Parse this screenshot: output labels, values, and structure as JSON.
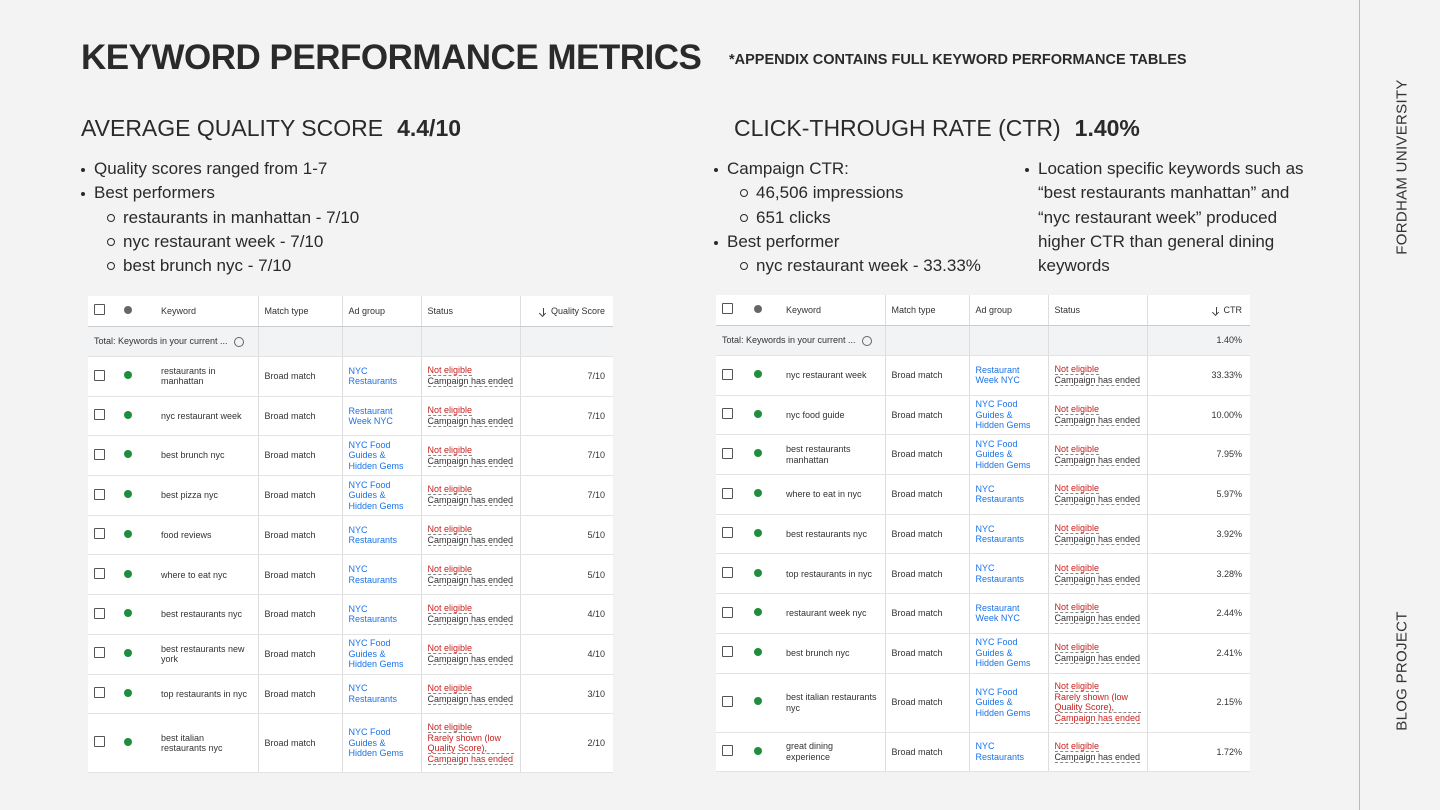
{
  "header": {
    "title": "KEYWORD PERFORMANCE METRICS",
    "note": "*APPENDIX CONTAINS FULL KEYWORD PERFORMANCE TABLES"
  },
  "sidebar": {
    "top": "FORDHAM UNIVERSITY",
    "bottom": "BLOG PROJECT"
  },
  "left": {
    "heading": "AVERAGE QUALITY SCORE",
    "value": "4.4/10",
    "bullets": [
      {
        "text": "Quality scores ranged from 1-7"
      },
      {
        "text": "Best performers",
        "sub": [
          "restaurants in manhattan - 7/10",
          "nyc restaurant week - 7/10",
          "best brunch nyc - 7/10"
        ]
      }
    ]
  },
  "right": {
    "heading": "CLICK-THROUGH RATE (CTR)",
    "value": "1.40%",
    "bullets": [
      {
        "text": "Campaign CTR:",
        "sub": [
          "46,506 impressions",
          "651 clicks"
        ]
      },
      {
        "text": "Best performer",
        "sub": [
          "nyc restaurant week - 33.33%"
        ]
      }
    ],
    "bullets_2": [
      {
        "text": "Location specific keywords such as “best restaurants manhattan” and “nyc restaurant week” produced higher CTR than general dining keywords"
      }
    ]
  },
  "tables": [
    {
      "columns": [
        "Keyword",
        "Match type",
        "Ad group",
        "Status",
        "Quality Score"
      ],
      "total": {
        "label": "Total: Keywords in your current ..."
      },
      "rows": [
        {
          "keyword": "restaurants in manhattan",
          "match_type": "Broad match",
          "ad_group": "NYC Restaurants",
          "status": [
            "Not eligible",
            "Campaign has ended"
          ],
          "score": "7/10"
        },
        {
          "keyword": "nyc restaurant week",
          "match_type": "Broad match",
          "ad_group": "Restaurant Week NYC",
          "status": [
            "Not eligible",
            "Campaign has ended"
          ],
          "score": "7/10"
        },
        {
          "keyword": "best brunch nyc",
          "match_type": "Broad match",
          "ad_group": "NYC Food Guides & Hidden Gems",
          "status": [
            "Not eligible",
            "Campaign has ended"
          ],
          "score": "7/10"
        },
        {
          "keyword": "best pizza nyc",
          "match_type": "Broad match",
          "ad_group": "NYC Food Guides & Hidden Gems",
          "status": [
            "Not eligible",
            "Campaign has ended"
          ],
          "score": "7/10"
        },
        {
          "keyword": "food reviews",
          "match_type": "Broad match",
          "ad_group": "NYC Restaurants",
          "status": [
            "Not eligible",
            "Campaign has ended"
          ],
          "score": "5/10"
        },
        {
          "keyword": "where to eat nyc",
          "match_type": "Broad match",
          "ad_group": "NYC Restaurants",
          "status": [
            "Not eligible",
            "Campaign has ended"
          ],
          "score": "5/10"
        },
        {
          "keyword": "best restaurants nyc",
          "match_type": "Broad match",
          "ad_group": "NYC Restaurants",
          "status": [
            "Not eligible",
            "Campaign has ended"
          ],
          "score": "4/10"
        },
        {
          "keyword": "best restaurants new york",
          "match_type": "Broad match",
          "ad_group": "NYC Food Guides & Hidden Gems",
          "status": [
            "Not eligible",
            "Campaign has ended"
          ],
          "score": "4/10"
        },
        {
          "keyword": "top restaurants in nyc",
          "match_type": "Broad match",
          "ad_group": "NYC Restaurants",
          "status": [
            "Not eligible",
            "Campaign has ended"
          ],
          "score": "3/10"
        },
        {
          "keyword": "best italian restaurants nyc",
          "match_type": "Broad match",
          "ad_group": "NYC Food Guides & Hidden Gems",
          "status": [
            "Not eligible",
            "Rarely shown (low Quality Score),",
            "Campaign has ended"
          ],
          "score": "2/10"
        }
      ]
    },
    {
      "columns": [
        "Keyword",
        "Match type",
        "Ad group",
        "Status",
        "CTR"
      ],
      "total": {
        "label": "Total: Keywords in your current ...",
        "value": "1.40%"
      },
      "rows": [
        {
          "keyword": "nyc restaurant week",
          "match_type": "Broad match",
          "ad_group": "Restaurant Week NYC",
          "status": [
            "Not eligible",
            "Campaign has ended"
          ],
          "score": "33.33%"
        },
        {
          "keyword": "nyc food guide",
          "match_type": "Broad match",
          "ad_group": "NYC Food Guides & Hidden Gems",
          "status": [
            "Not eligible",
            "Campaign has ended"
          ],
          "score": "10.00%"
        },
        {
          "keyword": "best restaurants manhattan",
          "match_type": "Broad match",
          "ad_group": "NYC Food Guides & Hidden Gems",
          "status": [
            "Not eligible",
            "Campaign has ended"
          ],
          "score": "7.95%"
        },
        {
          "keyword": "where to eat in nyc",
          "match_type": "Broad match",
          "ad_group": "NYC Restaurants",
          "status": [
            "Not eligible",
            "Campaign has ended"
          ],
          "score": "5.97%"
        },
        {
          "keyword": "best restaurants nyc",
          "match_type": "Broad match",
          "ad_group": "NYC Restaurants",
          "status": [
            "Not eligible",
            "Campaign has ended"
          ],
          "score": "3.92%"
        },
        {
          "keyword": "top restaurants in nyc",
          "match_type": "Broad match",
          "ad_group": "NYC Restaurants",
          "status": [
            "Not eligible",
            "Campaign has ended"
          ],
          "score": "3.28%"
        },
        {
          "keyword": "restaurant week nyc",
          "match_type": "Broad match",
          "ad_group": "Restaurant Week NYC",
          "status": [
            "Not eligible",
            "Campaign has ended"
          ],
          "score": "2.44%"
        },
        {
          "keyword": "best brunch nyc",
          "match_type": "Broad match",
          "ad_group": "NYC Food Guides & Hidden Gems",
          "status": [
            "Not eligible",
            "Campaign has ended"
          ],
          "score": "2.41%"
        },
        {
          "keyword": "best italian restaurants nyc",
          "match_type": "Broad match",
          "ad_group": "NYC Food Guides & Hidden Gems",
          "status": [
            "Not eligible",
            "Rarely shown (low Quality Score),",
            "Campaign has ended"
          ],
          "score": "2.15%"
        },
        {
          "keyword": "great dining experience",
          "match_type": "Broad match",
          "ad_group": "NYC Restaurants",
          "status": [
            "Not eligible",
            "Campaign has ended"
          ],
          "score": "1.72%"
        }
      ]
    }
  ]
}
